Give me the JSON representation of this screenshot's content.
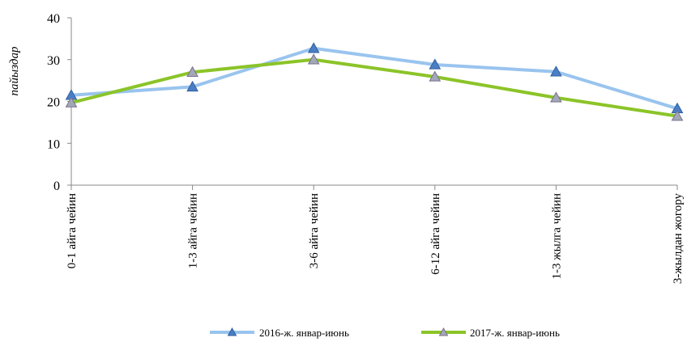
{
  "chart_data": {
    "type": "line",
    "title": "",
    "xlabel": "",
    "ylabel": "пайыздар",
    "ylim": [
      0,
      40
    ],
    "yticks": [
      "0",
      "10",
      "20",
      "30",
      "40"
    ],
    "grid": false,
    "legend_position": "bottom",
    "categories": [
      "0-1 айга чейин",
      "1-3 айга чейин",
      "3-6 айга чейин",
      "6-12 айга чейин",
      "1-3 жылга чейин",
      "3-жылдан жогору"
    ],
    "series": [
      {
        "name": "2016-ж. январ-июнь",
        "color": "#99c4ee",
        "marker_color": "#4a7ec6",
        "values": [
          21.5,
          23.5,
          32.7,
          28.8,
          27.1,
          18.3
        ]
      },
      {
        "name": "2017-ж. январ-июнь",
        "color": "#8bc428",
        "marker_color": "#a3a8b8",
        "values": [
          19.7,
          27.0,
          30.0,
          25.9,
          20.9,
          16.5
        ]
      }
    ]
  }
}
